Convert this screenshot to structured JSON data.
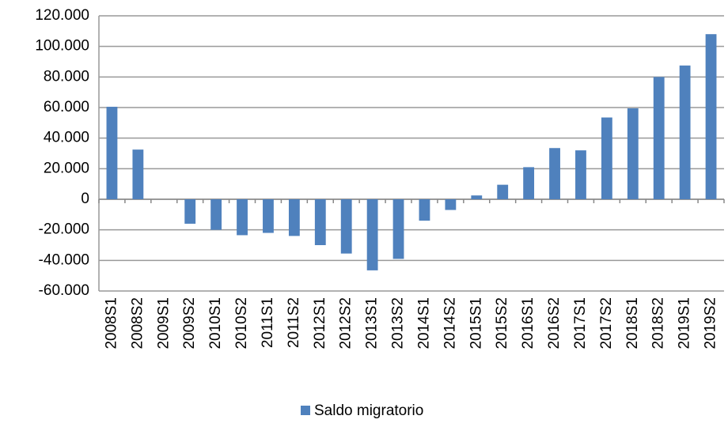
{
  "chart_data": {
    "type": "bar",
    "categories": [
      "2008S1",
      "2008S2",
      "2009S1",
      "2009S2",
      "2010S1",
      "2010S2",
      "2011S1",
      "2011S2",
      "2012S1",
      "2012S2",
      "2013S1",
      "2013S2",
      "2014S1",
      "2014S2",
      "2015S1",
      "2015S2",
      "2016S1",
      "2016S2",
      "2017S1",
      "2017S2",
      "2018S1",
      "2018S2",
      "2019S1",
      "2019S2"
    ],
    "series": [
      {
        "name": "Saldo migratorio",
        "color": "#4f81bd",
        "values": [
          60500,
          32500,
          0,
          -16000,
          -20000,
          -23500,
          -22000,
          -24000,
          -30000,
          -35500,
          -46500,
          -39000,
          -14000,
          -7000,
          2500,
          9500,
          21000,
          33500,
          32000,
          53500,
          59500,
          80000,
          87500,
          108000
        ]
      }
    ],
    "ylim": [
      -60000,
      120000
    ],
    "yticks": [
      {
        "value": -60000,
        "label": "-60.000"
      },
      {
        "value": -40000,
        "label": "-40.000"
      },
      {
        "value": -20000,
        "label": "-20.000"
      },
      0,
      {
        "value": 20000,
        "label": "20.000"
      },
      {
        "value": 40000,
        "label": "40.000"
      },
      {
        "value": 60000,
        "label": "60.000"
      },
      {
        "value": 80000,
        "label": "80.000"
      },
      {
        "value": 100000,
        "label": "100.000"
      },
      {
        "value": 120000,
        "label": "120.000"
      }
    ],
    "grid": true,
    "legend": "bottom"
  }
}
